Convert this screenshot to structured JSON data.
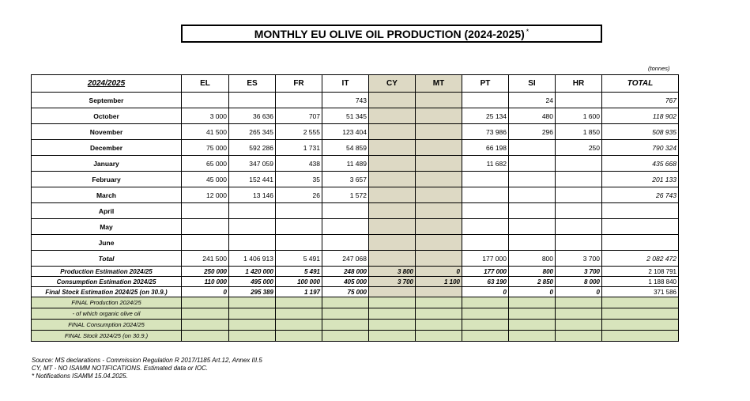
{
  "title": "MONTHLY EU OLIVE OIL PRODUCTION (2024-2025)",
  "title_mark": "*",
  "units": "(tonnes)",
  "header": [
    "2024/2025",
    "EL",
    "ES",
    "FR",
    "IT",
    "CY",
    "MT",
    "PT",
    "SI",
    "HR",
    "TOTAL"
  ],
  "months": [
    {
      "label": "September",
      "values": [
        "",
        "",
        "",
        "743",
        "",
        "",
        "",
        "24",
        "",
        "767"
      ]
    },
    {
      "label": "October",
      "values": [
        "3 000",
        "36 636",
        "707",
        "51 345",
        "",
        "",
        "25 134",
        "480",
        "1 600",
        "118 902"
      ]
    },
    {
      "label": "November",
      "values": [
        "41 500",
        "265 345",
        "2 555",
        "123 404",
        "",
        "",
        "73 986",
        "296",
        "1 850",
        "508 935"
      ]
    },
    {
      "label": "December",
      "values": [
        "75 000",
        "592 286",
        "1 731",
        "54 859",
        "",
        "",
        "66 198",
        "",
        "250",
        "790 324"
      ]
    },
    {
      "label": "January",
      "values": [
        "65 000",
        "347 059",
        "438",
        "11 489",
        "",
        "",
        "11 682",
        "",
        "",
        "435 668"
      ]
    },
    {
      "label": "February",
      "values": [
        "45 000",
        "152 441",
        "35",
        "3 657",
        "",
        "",
        "",
        "",
        "",
        "201 133"
      ]
    },
    {
      "label": "March",
      "values": [
        "12 000",
        "13 146",
        "26",
        "1 572",
        "",
        "",
        "",
        "",
        "",
        "26 743"
      ]
    },
    {
      "label": "April",
      "values": [
        "",
        "",
        "",
        "",
        "",
        "",
        "",
        "",
        "",
        ""
      ]
    },
    {
      "label": "May",
      "values": [
        "",
        "",
        "",
        "",
        "",
        "",
        "",
        "",
        "",
        ""
      ]
    },
    {
      "label": "June",
      "values": [
        "",
        "",
        "",
        "",
        "",
        "",
        "",
        "",
        "",
        ""
      ]
    }
  ],
  "total": {
    "label": "Total",
    "values": [
      "241 500",
      "1 406 913",
      "5 491",
      "247 068",
      "",
      "",
      "177 000",
      "800",
      "3 700",
      "2 082 472"
    ]
  },
  "estimates": [
    {
      "label": "Production  Estimation  2024/25",
      "values": [
        "250 000",
        "1 420 000",
        "5 491",
        "248 000",
        "3 800",
        "0",
        "177 000",
        "800",
        "3 700",
        "2 108 791"
      ]
    },
    {
      "label": "Consumption  Estimation  2024/25",
      "values": [
        "110 000",
        "495 000",
        "100 000",
        "405 000",
        "3 700",
        "1 100",
        "63 190",
        "2 850",
        "8 000",
        "1 188 840"
      ]
    },
    {
      "label": "Final Stock  Estimation  2024/25 (on 30.9.)",
      "values": [
        "0",
        "295 389",
        "1 197",
        "75 000",
        "",
        "",
        "0",
        "0",
        "0",
        "371 586"
      ]
    }
  ],
  "finals": [
    {
      "label": "FINAL Production 2024/25"
    },
    {
      "label": "- of which organic olive oil"
    },
    {
      "label": "FINAL Consumption 2024/25"
    },
    {
      "label": "FINAL Stock 2024/25 (on 30.9.)"
    }
  ],
  "notes": [
    "Source: MS declarations - Commission Regulation R 2017/1185 Art.12, Annex III.5",
    "CY, MT - NO ISAMM NOTIFICATIONS. Estimated data or IOC.",
    "* Notifications ISAMM 15.04.2025."
  ]
}
